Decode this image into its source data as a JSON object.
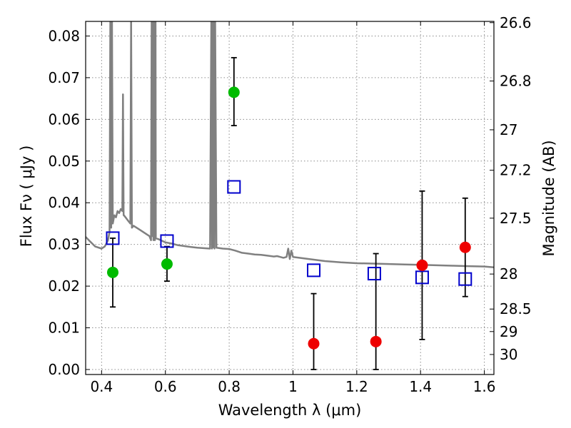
{
  "chart_data": {
    "type": "scatter",
    "xlabel": "Wavelength  λ (μm)",
    "ylabel": "Flux  Fν  ( μJy )",
    "ylabel_right": "Magnitude (AB)",
    "xlim": [
      0.35,
      1.63
    ],
    "ylim": [
      -0.0012,
      0.0835
    ],
    "x_ticks": [
      0.4,
      0.6,
      0.8,
      1.0,
      1.2,
      1.4,
      1.6
    ],
    "x_tick_labels": [
      "0.4",
      "0.6",
      "0.8",
      "1",
      "1.2",
      "1.4",
      "1.6"
    ],
    "y_ticks": [
      0.0,
      0.01,
      0.02,
      0.03,
      0.04,
      0.05,
      0.06,
      0.07,
      0.08
    ],
    "y_tick_labels": [
      "0.00",
      "0.01",
      "0.02",
      "0.03",
      "0.04",
      "0.05",
      "0.06",
      "0.07",
      "0.08"
    ],
    "right_ticks": [
      {
        "label": "26.6",
        "flux": 0.0832
      },
      {
        "label": "26.8",
        "flux": 0.0692
      },
      {
        "label": "27",
        "flux": 0.0575
      },
      {
        "label": "27.2",
        "flux": 0.0478
      },
      {
        "label": "27.5",
        "flux": 0.0363
      },
      {
        "label": "28",
        "flux": 0.0229
      },
      {
        "label": "28.5",
        "flux": 0.0145
      },
      {
        "label": "29",
        "flux": 0.0091
      },
      {
        "label": "30",
        "flux": 0.0036
      }
    ],
    "grid": true,
    "series": [
      {
        "kind": "line",
        "color": "#808080",
        "x": [
          0.35,
          0.36,
          0.38,
          0.4,
          0.41,
          0.42,
          0.425,
          0.4275,
          0.43,
          0.4325,
          0.435,
          0.44,
          0.445,
          0.45,
          0.455,
          0.46,
          0.465,
          0.467,
          0.469,
          0.47,
          0.475,
          0.48,
          0.485,
          0.49,
          0.4925,
          0.495,
          0.5,
          0.52,
          0.54,
          0.55,
          0.555,
          0.557,
          0.559,
          0.56,
          0.5625,
          0.565,
          0.567,
          0.569,
          0.57,
          0.58,
          0.6,
          0.62,
          0.64,
          0.66,
          0.68,
          0.7,
          0.72,
          0.74,
          0.744,
          0.746,
          0.748,
          0.75,
          0.752,
          0.754,
          0.756,
          0.76,
          0.78,
          0.8,
          0.82,
          0.84,
          0.86,
          0.88,
          0.9,
          0.92,
          0.94,
          0.95,
          0.96,
          0.97,
          0.98,
          0.985,
          0.99,
          0.995,
          1.0,
          1.02,
          1.05,
          1.1,
          1.15,
          1.2,
          1.25,
          1.3,
          1.35,
          1.4,
          1.45,
          1.5,
          1.55,
          1.6,
          1.63
        ],
        "y": [
          0.0318,
          0.031,
          0.0295,
          0.029,
          0.0295,
          0.031,
          0.033,
          0.085,
          0.034,
          0.085,
          0.035,
          0.037,
          0.0365,
          0.038,
          0.0375,
          0.0385,
          0.038,
          0.066,
          0.037,
          0.037,
          0.0365,
          0.036,
          0.0355,
          0.035,
          0.085,
          0.034,
          0.0345,
          0.0335,
          0.0325,
          0.032,
          0.031,
          0.085,
          0.032,
          0.085,
          0.031,
          0.085,
          0.031,
          0.085,
          0.0315,
          0.0312,
          0.0305,
          0.0302,
          0.0298,
          0.0296,
          0.0294,
          0.0292,
          0.0291,
          0.029,
          0.085,
          0.029,
          0.085,
          0.0293,
          0.085,
          0.029,
          0.085,
          0.0292,
          0.029,
          0.0289,
          0.0285,
          0.028,
          0.0278,
          0.0276,
          0.0275,
          0.0273,
          0.0271,
          0.0272,
          0.027,
          0.0268,
          0.027,
          0.029,
          0.0265,
          0.0285,
          0.027,
          0.0268,
          0.0265,
          0.026,
          0.0257,
          0.0255,
          0.0254,
          0.0253,
          0.0252,
          0.0251,
          0.025,
          0.0249,
          0.0248,
          0.0247,
          0.0245
        ]
      },
      {
        "kind": "open-square",
        "color": "#0000cc",
        "x": [
          0.435,
          0.605,
          0.815,
          1.065,
          1.255,
          1.405,
          1.54
        ],
        "y": [
          0.0315,
          0.0308,
          0.0438,
          0.0238,
          0.023,
          0.0221,
          0.0217
        ]
      },
      {
        "kind": "filled-circle",
        "color": "#00bb00",
        "x": [
          0.435,
          0.605,
          0.815
        ],
        "y": [
          0.0233,
          0.0253,
          0.0665
        ],
        "yerr_low": [
          0.015,
          0.0212,
          0.0585
        ],
        "yerr_high": [
          0.0315,
          0.0295,
          0.0748
        ]
      },
      {
        "kind": "filled-circle",
        "color": "#ee0000",
        "x": [
          1.065,
          1.26,
          1.405,
          1.54
        ],
        "y": [
          0.0062,
          0.0067,
          0.025,
          0.0293
        ],
        "yerr_low": [
          0.0,
          0.0,
          0.0072,
          0.0175
        ],
        "yerr_high": [
          0.0182,
          0.0278,
          0.0428,
          0.0411
        ]
      }
    ]
  }
}
